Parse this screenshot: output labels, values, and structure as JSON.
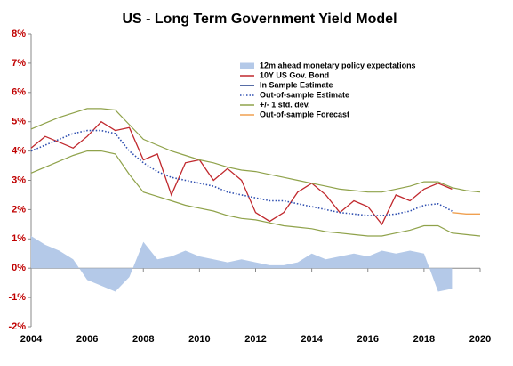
{
  "chart_data": {
    "type": "line",
    "title": "US - Long Term Government Yield Model",
    "x": [
      2004,
      2004.5,
      2005,
      2005.5,
      2006,
      2006.5,
      2007,
      2007.5,
      2008,
      2008.5,
      2009,
      2009.5,
      2010,
      2010.5,
      2011,
      2011.5,
      2012,
      2012.5,
      2013,
      2013.5,
      2014,
      2014.5,
      2015,
      2015.5,
      2016,
      2016.5,
      2017,
      2017.5,
      2018,
      2018.5,
      2019,
      2019.5,
      2020
    ],
    "series": [
      {
        "name": "12m ahead monetary policy expectations",
        "type": "area",
        "color": "#b4c9e8",
        "values": [
          1.1,
          0.8,
          0.6,
          0.3,
          -0.4,
          -0.6,
          -0.8,
          -0.3,
          0.9,
          0.3,
          0.4,
          0.6,
          0.4,
          0.3,
          0.2,
          0.3,
          0.2,
          0.1,
          0.1,
          0.2,
          0.5,
          0.3,
          0.4,
          0.5,
          0.4,
          0.6,
          0.5,
          0.6,
          0.5,
          -0.8,
          -0.7,
          null,
          null
        ]
      },
      {
        "name": "10Y US Gov. Bond",
        "type": "line",
        "color": "#c0282d",
        "values": [
          4.1,
          4.5,
          4.3,
          4.1,
          4.5,
          5.0,
          4.7,
          4.8,
          3.7,
          3.9,
          2.5,
          3.6,
          3.7,
          3.0,
          3.4,
          3.0,
          1.9,
          1.6,
          1.9,
          2.6,
          2.9,
          2.5,
          1.9,
          2.3,
          2.1,
          1.5,
          2.5,
          2.3,
          2.7,
          2.9,
          2.7,
          null,
          null
        ]
      },
      {
        "name": "In Sample Estimate",
        "type": "line",
        "color": "#1f3c88",
        "values": [
          null,
          null,
          null,
          null,
          null,
          null,
          null,
          null,
          null,
          null,
          null,
          null,
          null,
          null,
          null,
          null,
          null,
          null,
          null,
          null,
          null,
          null,
          null,
          null,
          null,
          null,
          null,
          null,
          null,
          null,
          null,
          null,
          null
        ]
      },
      {
        "name": "Out-of-sample Estimate",
        "type": "line",
        "style": "dotted",
        "color": "#2f4fb0",
        "values": [
          4.0,
          4.2,
          4.4,
          4.6,
          4.7,
          4.7,
          4.6,
          4.0,
          3.6,
          3.3,
          3.1,
          3.0,
          2.9,
          2.8,
          2.6,
          2.5,
          2.4,
          2.3,
          2.3,
          2.2,
          2.1,
          2.0,
          1.9,
          1.85,
          1.8,
          1.8,
          1.85,
          1.95,
          2.15,
          2.2,
          1.95,
          null,
          null
        ]
      },
      {
        "name": "+/- 1 std. dev.",
        "type": "band",
        "color": "#8fa24a",
        "upper": [
          4.75,
          4.95,
          5.15,
          5.3,
          5.45,
          5.45,
          5.4,
          4.9,
          4.4,
          4.2,
          4.0,
          3.85,
          3.7,
          3.6,
          3.45,
          3.35,
          3.3,
          3.2,
          3.1,
          3.0,
          2.9,
          2.8,
          2.7,
          2.65,
          2.6,
          2.6,
          2.7,
          2.8,
          2.95,
          2.95,
          2.75,
          2.65,
          2.6
        ],
        "lower": [
          3.25,
          3.45,
          3.65,
          3.85,
          4.0,
          4.0,
          3.9,
          3.2,
          2.6,
          2.45,
          2.3,
          2.15,
          2.05,
          1.95,
          1.8,
          1.7,
          1.65,
          1.55,
          1.45,
          1.4,
          1.35,
          1.25,
          1.2,
          1.15,
          1.1,
          1.1,
          1.2,
          1.3,
          1.45,
          1.45,
          1.2,
          1.15,
          1.1
        ]
      },
      {
        "name": "Out-of-sample Forecast",
        "type": "line",
        "color": "#f0a050",
        "values": [
          null,
          null,
          null,
          null,
          null,
          null,
          null,
          null,
          null,
          null,
          null,
          null,
          null,
          null,
          null,
          null,
          null,
          null,
          null,
          null,
          null,
          null,
          null,
          null,
          null,
          null,
          null,
          null,
          null,
          null,
          1.9,
          1.85,
          1.85
        ]
      }
    ],
    "xlim": [
      2004,
      2020
    ],
    "xticks": [
      2004,
      2006,
      2008,
      2010,
      2012,
      2014,
      2016,
      2018,
      2020
    ],
    "ylim": [
      -2,
      8
    ],
    "yticks": [
      {
        "value": -2,
        "label": "-2%"
      },
      {
        "value": -1,
        "label": "-1%"
      },
      {
        "value": 0,
        "label": "0%"
      },
      {
        "value": 1,
        "label": "1%"
      },
      {
        "value": 2,
        "label": "2%"
      },
      {
        "value": 3,
        "label": "3%"
      },
      {
        "value": 4,
        "label": "4%"
      },
      {
        "value": 5,
        "label": "5%"
      },
      {
        "value": 6,
        "label": "6%"
      },
      {
        "value": 7,
        "label": "7%"
      },
      {
        "value": 8,
        "label": "8%"
      }
    ],
    "grid": false,
    "legend": "upper right"
  }
}
